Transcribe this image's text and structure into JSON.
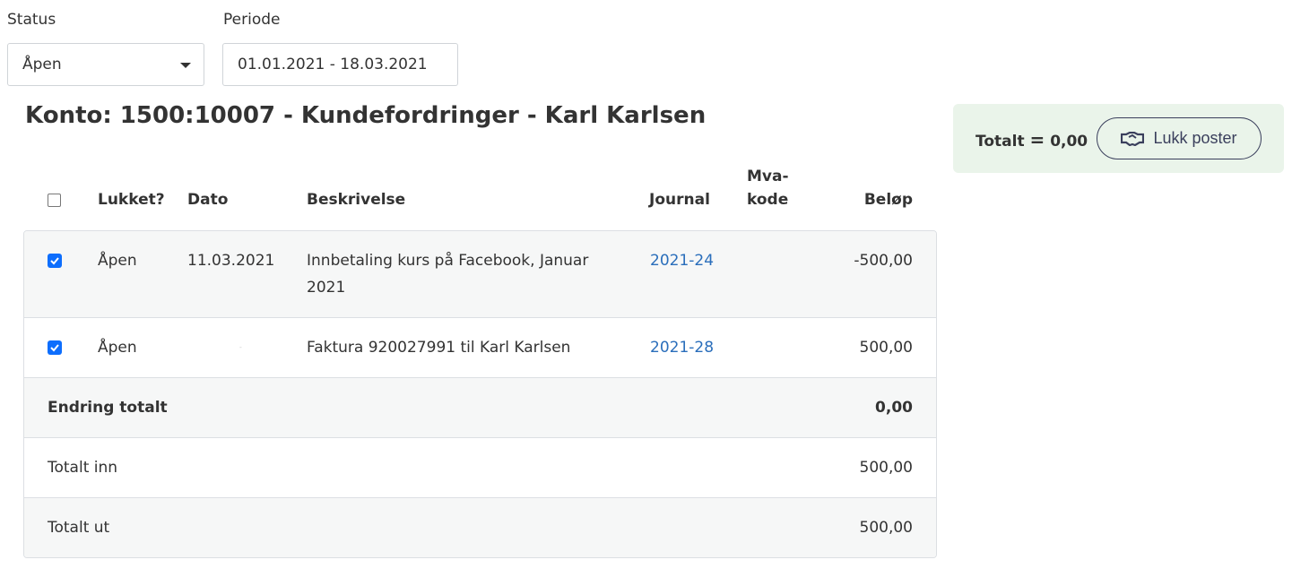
{
  "filters": {
    "status_label": "Status",
    "status_value": "Åpen",
    "period_label": "Periode",
    "period_value": "01.01.2021 - 18.03.2021"
  },
  "title": "Konto: 1500:10007 - Kundefordringer - Karl Karlsen",
  "summary": {
    "total_label": "Totalt",
    "equals": "=",
    "total_value": "0,00",
    "button_label": "Lukk poster",
    "button_icon": "handshake-icon"
  },
  "columns": {
    "closed": "Lukket?",
    "date": "Dato",
    "description": "Beskrivelse",
    "journal": "Journal",
    "vat1": "Mva-",
    "vat2": "kode",
    "amount": "Beløp"
  },
  "rows": [
    {
      "checked": true,
      "status": "Åpen",
      "date": "11.03.2021",
      "description1": "Innbetaling kurs på Facebook, Januar",
      "description2": "2021",
      "journal": "2021-24",
      "vat": "",
      "amount": "-500,00"
    },
    {
      "checked": true,
      "status": "Åpen",
      "date": "-",
      "description1": "Faktura 920027991 til Karl Karlsen",
      "description2": "",
      "journal": "2021-28",
      "vat": "",
      "amount": "500,00"
    }
  ],
  "totals": [
    {
      "label": "Endring totalt",
      "value": "0,00"
    },
    {
      "label": "Totalt inn",
      "value": "500,00"
    },
    {
      "label": "Totalt ut",
      "value": "500,00"
    }
  ],
  "colors": {
    "accent": "#0d6efd",
    "link": "#2a6ebb",
    "summary_bg": "#eaf4ea",
    "button": "#3a3f5c"
  }
}
